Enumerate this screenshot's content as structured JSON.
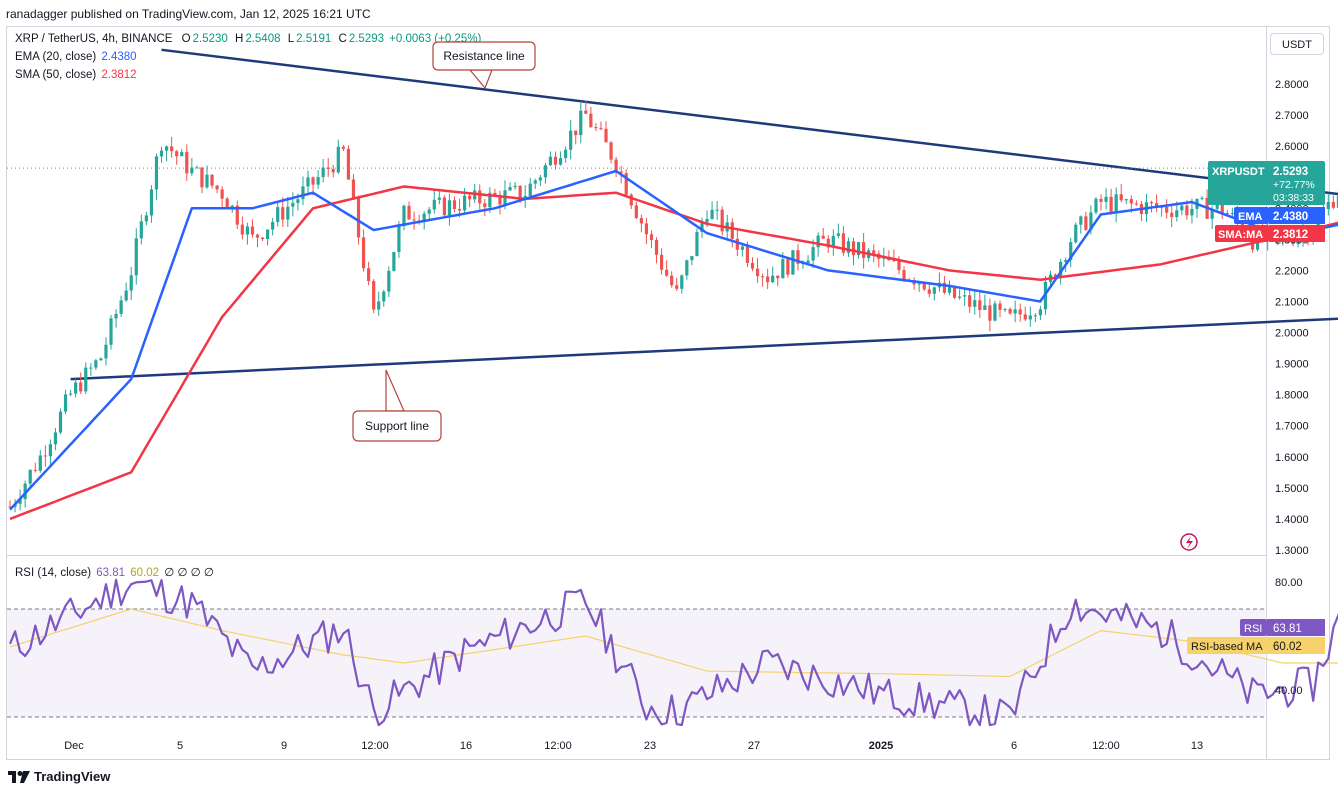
{
  "header": {
    "publisher": "ranadagger published on TradingView.com, Jan 12, 2025 16:21 UTC"
  },
  "legend": {
    "symbol": "XRP / TetherUS, 4h, BINANCE",
    "o_label": "O",
    "o": "2.5230",
    "h_label": "H",
    "h": "2.5408",
    "l_label": "L",
    "l": "2.5191",
    "c_label": "C",
    "c": "2.5293",
    "change": "+0.0063 (+0.25%)",
    "ema_label": "EMA (20, close)",
    "ema_value": "2.4380",
    "sma_label": "SMA (50, close)",
    "sma_value": "2.3812",
    "rsi_label": "RSI (14, close)",
    "rsi_value": "63.81",
    "rsi_ma_value": "60.02",
    "rsi_extra": "∅ ∅ ∅ ∅"
  },
  "currency_button": "USDT",
  "annotations": {
    "resistance": "Resistance line",
    "support": "Support line"
  },
  "price_badges": {
    "symbol": "XRPUSDT",
    "price": "2.5293",
    "pct": "+72.77%",
    "countdown": "03:38:33",
    "ema_label": "EMA",
    "ema": "2.4380",
    "sma_label": "SMA:MA",
    "sma": "2.3812"
  },
  "rsi_badges": {
    "rsi_label": "RSI",
    "rsi": "63.81",
    "ma_label": "RSI-based MA",
    "ma": "60.02"
  },
  "colors": {
    "up": "#26a69a",
    "down": "#ef5350",
    "ema": "#2962ff",
    "sma": "#f23645",
    "rsi": "#7e57c2",
    "rsi_ma": "#f7d26a",
    "trendline": "#1e3a7b",
    "callout_border": "#b2443c"
  },
  "footer": {
    "brand": "TradingView"
  },
  "chart_data": {
    "type": "candlestick",
    "title": "XRP / TetherUS, 4h, BINANCE",
    "price_axis": {
      "min": 1.3,
      "max": 2.8,
      "ticks": [
        "2.8000",
        "2.7000",
        "2.6000",
        "2.5000",
        "2.4000",
        "2.3000",
        "2.2000",
        "2.1000",
        "2.0000",
        "1.9000",
        "1.8000",
        "1.7000",
        "1.6000",
        "1.5000",
        "1.4000",
        "1.3000"
      ],
      "grid": false
    },
    "time_axis": {
      "labels": [
        "Dec",
        "5",
        "9",
        "12:00",
        "16",
        "12:00",
        "23",
        "27",
        "2025",
        "6",
        "12:00",
        "13"
      ]
    },
    "price_path": [
      [
        "Nov 28",
        1.44
      ],
      [
        "Nov 29",
        1.6
      ],
      [
        "Nov 30",
        1.8
      ],
      [
        "Dec 1",
        1.92
      ],
      [
        "Dec 2",
        2.2
      ],
      [
        "Dec 3",
        2.62
      ],
      [
        "Dec 4",
        2.52
      ],
      [
        "Dec 5",
        2.45
      ],
      [
        "Dec 6",
        2.3
      ],
      [
        "Dec 8",
        2.48
      ],
      [
        "Dec 9",
        2.58
      ],
      [
        "Dec 10",
        2.05
      ],
      [
        "Dec 11",
        2.38
      ],
      [
        "Dec 13",
        2.42
      ],
      [
        "Dec 15",
        2.45
      ],
      [
        "Dec 17",
        2.7
      ],
      [
        "Dec 18",
        2.55
      ],
      [
        "Dec 19",
        2.32
      ],
      [
        "Dec 20",
        2.12
      ],
      [
        "Dec 21",
        2.4
      ],
      [
        "Dec 23",
        2.18
      ],
      [
        "Dec 25",
        2.3
      ],
      [
        "Dec 27",
        2.22
      ],
      [
        "Dec 29",
        2.12
      ],
      [
        "Dec 31",
        2.04
      ],
      [
        "Jan 1",
        2.1
      ],
      [
        "Jan 2",
        2.3
      ],
      [
        "Jan 3",
        2.42
      ],
      [
        "Jan 5",
        2.4
      ],
      [
        "Jan 7",
        2.4
      ],
      [
        "Jan 8",
        2.3
      ],
      [
        "Jan 9",
        2.3
      ],
      [
        "Jan 10",
        2.34
      ],
      [
        "Jan 11",
        2.48
      ],
      [
        "Jan 12",
        2.53
      ]
    ],
    "ema20_path": [
      [
        "Nov 28",
        1.43
      ],
      [
        "Dec 2",
        1.85
      ],
      [
        "Dec 4",
        2.4
      ],
      [
        "Dec 6",
        2.4
      ],
      [
        "Dec 8",
        2.45
      ],
      [
        "Dec 10",
        2.33
      ],
      [
        "Dec 14",
        2.4
      ],
      [
        "Dec 18",
        2.52
      ],
      [
        "Dec 21",
        2.32
      ],
      [
        "Dec 25",
        2.2
      ],
      [
        "Dec 29",
        2.15
      ],
      [
        "Jan 1",
        2.1
      ],
      [
        "Jan 3",
        2.38
      ],
      [
        "Jan 6",
        2.42
      ],
      [
        "Jan 9",
        2.31
      ],
      [
        "Jan 11",
        2.35
      ],
      [
        "Jan 12",
        2.44
      ]
    ],
    "sma50_path": [
      [
        "Nov 28",
        1.4
      ],
      [
        "Dec 2",
        1.55
      ],
      [
        "Dec 5",
        2.05
      ],
      [
        "Dec 8",
        2.4
      ],
      [
        "Dec 11",
        2.47
      ],
      [
        "Dec 15",
        2.43
      ],
      [
        "Dec 18",
        2.45
      ],
      [
        "Dec 21",
        2.35
      ],
      [
        "Dec 25",
        2.28
      ],
      [
        "Dec 29",
        2.2
      ],
      [
        "Jan 1",
        2.17
      ],
      [
        "Jan 5",
        2.22
      ],
      [
        "Jan 9",
        2.31
      ],
      [
        "Jan 12",
        2.38
      ]
    ],
    "rsi": {
      "axis_labels": [
        "80.00",
        "40.00"
      ],
      "bands": [
        70,
        30
      ],
      "rsi_path": [
        [
          "Nov 28",
          55
        ],
        [
          "Dec 2",
          80
        ],
        [
          "Dec 4",
          72
        ],
        [
          "Dec 6",
          47
        ],
        [
          "Dec 9",
          63
        ],
        [
          "Dec 10",
          32
        ],
        [
          "Dec 13",
          54
        ],
        [
          "Dec 17",
          73
        ],
        [
          "Dec 19",
          34
        ],
        [
          "Dec 20",
          32
        ],
        [
          "Dec 23",
          50
        ],
        [
          "Dec 27",
          38
        ],
        [
          "Dec 31",
          30
        ],
        [
          "Jan 2",
          72
        ],
        [
          "Jan 5",
          62
        ],
        [
          "Jan 8",
          38
        ],
        [
          "Jan 10",
          42
        ],
        [
          "Jan 11",
          70
        ],
        [
          "Jan 12",
          64
        ]
      ],
      "ma_path": [
        [
          "Nov 28",
          56
        ],
        [
          "Dec 2",
          70
        ],
        [
          "Dec 5",
          62
        ],
        [
          "Dec 9",
          53
        ],
        [
          "Dec 11",
          50
        ],
        [
          "Dec 17",
          60
        ],
        [
          "Dec 21",
          47
        ],
        [
          "Dec 27",
          46
        ],
        [
          "Dec 31",
          45
        ],
        [
          "Jan 3",
          62
        ],
        [
          "Jan 6",
          58
        ],
        [
          "Jan 9",
          50
        ],
        [
          "Jan 11",
          50
        ],
        [
          "Jan 12",
          60
        ]
      ]
    },
    "trendlines": [
      {
        "name": "Resistance line",
        "from": [
          "Dec 3",
          2.91
        ],
        "to": [
          "Jan 12",
          2.38
        ]
      },
      {
        "name": "Support line",
        "from": [
          "Nov 30",
          1.85
        ],
        "to": [
          "Jan 12",
          2.05
        ]
      }
    ]
  }
}
